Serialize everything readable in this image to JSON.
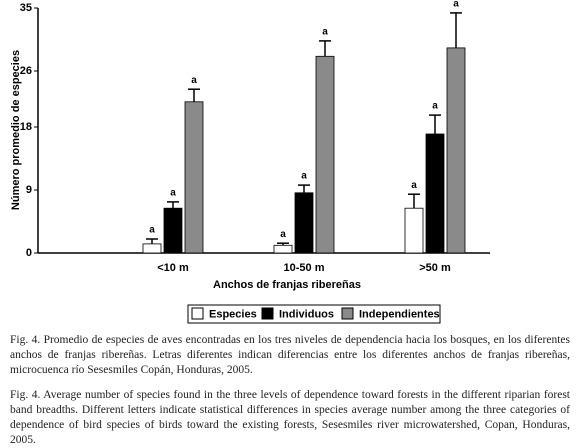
{
  "chart_data": {
    "type": "bar",
    "y_label": "Número promedio de especies",
    "x_label": "Anchos de franjas ribereñas",
    "categories": [
      "<10 m",
      "10-50 m",
      ">50 m"
    ],
    "series": [
      {
        "name": "Especies",
        "color": "#ffffff",
        "values": [
          1.3,
          1.1,
          6.4
        ],
        "errors": [
          0.7,
          0.3,
          2.0
        ],
        "letters": [
          "a",
          "a",
          "a"
        ]
      },
      {
        "name": "Individuos",
        "color": "#000000",
        "values": [
          6.4,
          8.6,
          17.0
        ],
        "errors": [
          0.9,
          1.1,
          2.7
        ],
        "letters": [
          "a",
          "a",
          "a"
        ]
      },
      {
        "name": "Independientes",
        "color": "#8a8a8a",
        "values": [
          21.6,
          28.1,
          29.3
        ],
        "errors": [
          1.8,
          2.2,
          5.0
        ],
        "letters": [
          "a",
          "a",
          "a"
        ]
      }
    ],
    "ylim": [
      0,
      35
    ],
    "yticks": [
      0,
      9,
      18,
      26,
      35
    ],
    "grid": false,
    "legend": "bottom"
  },
  "captions": [
    "Fig. 4. Promedio de especies de aves  encontradas en los tres niveles de dependencia hacia los bosques, en los diferentes anchos de franjas ribereñas. Letras diferentes indican diferencias entre los diferentes anchos de franjas ribereñas, microcuenca río Sesesmiles Copán, Honduras, 2005.",
    "Fig. 4. Average number of species found in the three levels of dependence toward forests in the different riparian forest band breadths.  Different letters indicate statistical differences in species average number among the three categories of dependence of bird species of birds toward the existing forests, Sesesmiles river microwatershed, Copan, Honduras, 2005."
  ]
}
